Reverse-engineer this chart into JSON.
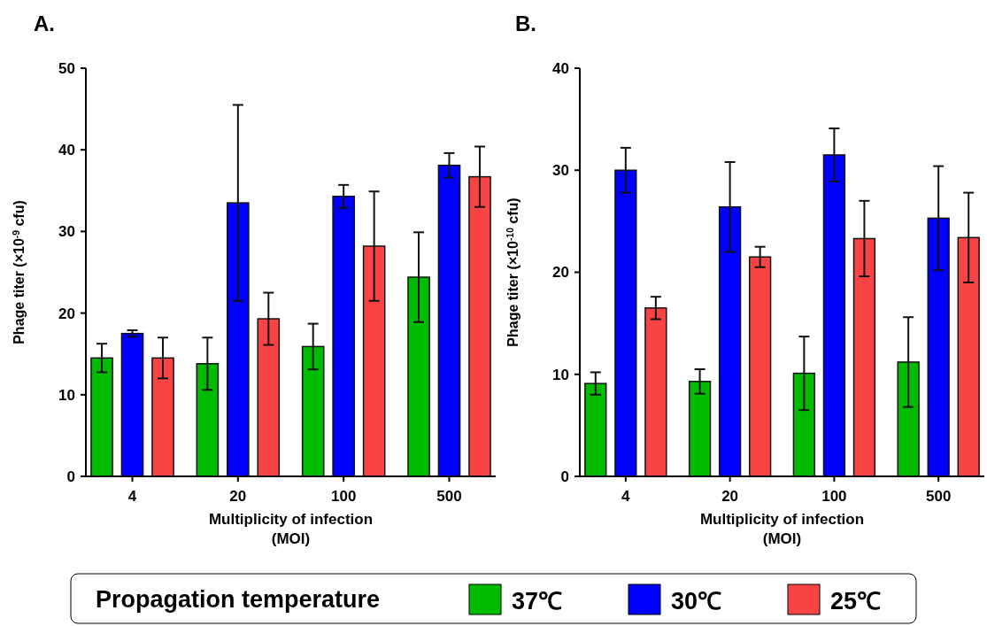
{
  "chart_data": [
    {
      "type": "bar",
      "title": "A.",
      "xlabel": "Multiplicity of infection\n(MOI)",
      "ylabel": "Phage titer (×10$^{-9}$ cfu)",
      "categories": [
        "4",
        "20",
        "100",
        "500"
      ],
      "ylim": [
        0,
        50
      ],
      "yticks": [
        0,
        10,
        20,
        30,
        40,
        50
      ],
      "legend": "bottom",
      "legend_title": "Propagation temperature",
      "series": [
        {
          "name": "37℃",
          "color": "#00bb00",
          "values": [
            14.5,
            13.8,
            15.9,
            24.4
          ],
          "errors": [
            1.75,
            3.2,
            2.8,
            5.5
          ]
        },
        {
          "name": "30℃",
          "color": "#0000ff",
          "values": [
            17.5,
            33.5,
            34.3,
            38.1
          ],
          "errors": [
            0.4,
            12,
            1.4,
            1.5
          ]
        },
        {
          "name": "25℃",
          "color": "#f84444",
          "values": [
            14.5,
            19.3,
            28.2,
            36.7
          ],
          "errors": [
            2.5,
            3.2,
            6.7,
            3.7
          ]
        }
      ]
    },
    {
      "type": "bar",
      "title": "B.",
      "xlabel": "Multiplicity of infection\n(MOI)",
      "ylabel": "Phage titer (×10$^{-10}$ cfu)",
      "categories": [
        "4",
        "20",
        "100",
        "500"
      ],
      "ylim": [
        0,
        40
      ],
      "yticks": [
        0,
        10,
        20,
        30,
        40
      ],
      "series": [
        {
          "color": "#00bb00",
          "values": [
            9.1,
            9.3,
            10.1,
            11.2
          ],
          "errors": [
            1.1,
            1.2,
            3.6,
            4.4
          ]
        },
        {
          "color": "#0000ff",
          "values": [
            30.0,
            26.4,
            31.5,
            25.3
          ],
          "errors": [
            2.2,
            4.4,
            2.6,
            5.1
          ]
        },
        {
          "color": "#f84444",
          "values": [
            16.5,
            21.5,
            23.3,
            23.4
          ],
          "errors": [
            1.1,
            1.0,
            3.7,
            4.4
          ]
        }
      ]
    }
  ]
}
